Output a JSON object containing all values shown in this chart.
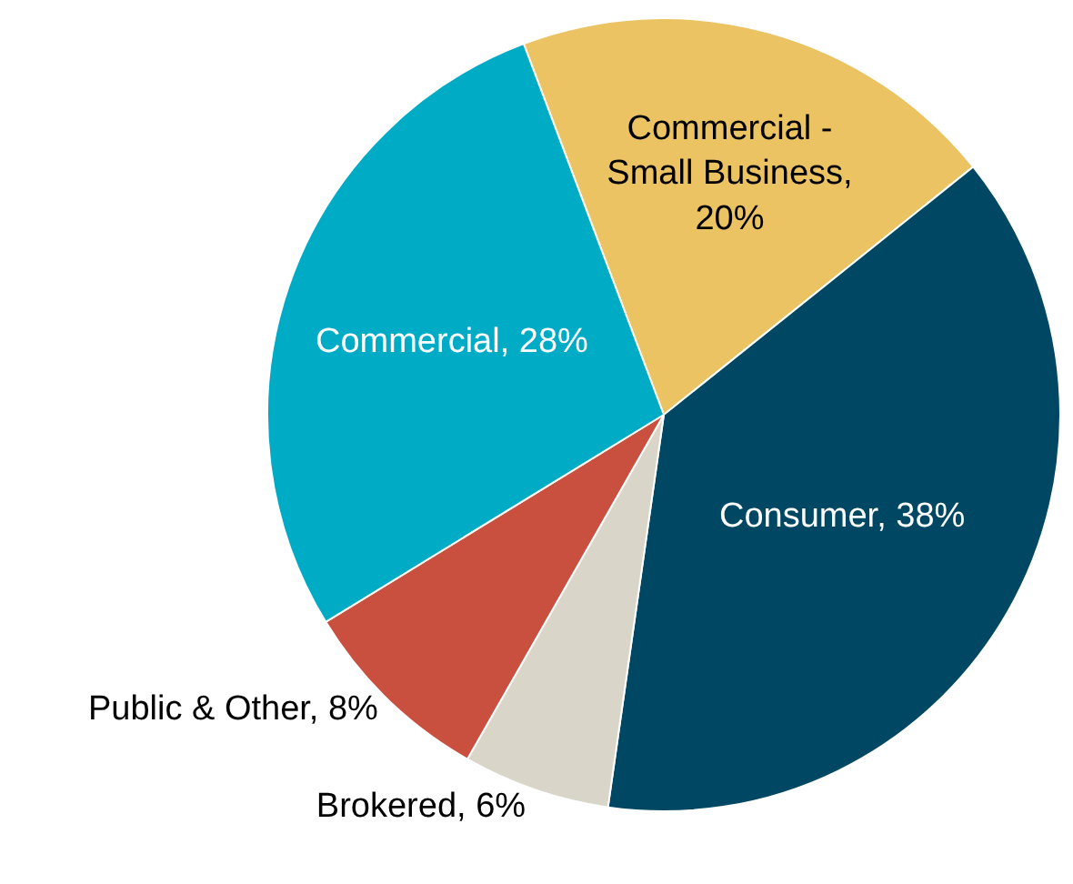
{
  "chart_data": {
    "type": "pie",
    "categories": [
      "Commercial - Small Business, 20%",
      "Consumer, 38%",
      "Brokered, 6%",
      "Public & Other, 8%",
      "Commercial, 28%"
    ],
    "values": [
      20,
      38,
      6,
      8,
      28
    ],
    "colors": [
      "#ecc363",
      "#004763",
      "#d9d5c8",
      "#c9503f",
      "#00abc6"
    ],
    "legend": false
  }
}
